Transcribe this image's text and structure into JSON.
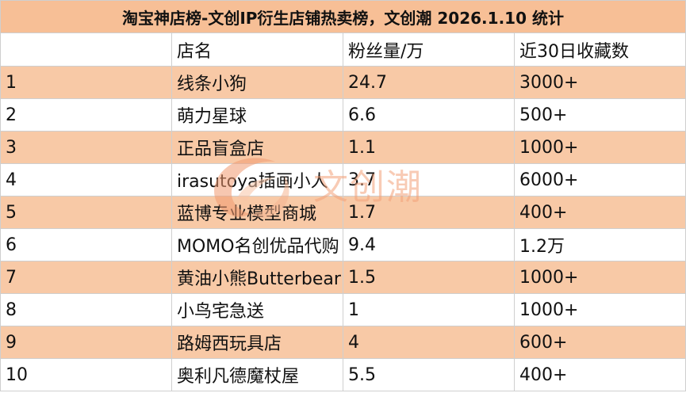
{
  "title": "淘宝神店榜-文创IP衍生店铺热卖榜，文创潮 2026.1.10 统计",
  "headers": {
    "rank": "",
    "name": "店名",
    "fans": "粉丝量/万",
    "favorites": "近30日收藏数"
  },
  "rows": [
    {
      "rank": "1",
      "name": "线条小狗",
      "fans": "24.7",
      "favorites": "3000+"
    },
    {
      "rank": "2",
      "name": "萌力星球",
      "fans": "6.6",
      "favorites": "500+"
    },
    {
      "rank": "3",
      "name": "正品盲盒店",
      "fans": "1.1",
      "favorites": "1000+"
    },
    {
      "rank": "4",
      "name": "irasutoya插画小人",
      "fans": "3.7",
      "favorites": "6000+"
    },
    {
      "rank": "5",
      "name": "蓝博专业模型商城",
      "fans": "1.7",
      "favorites": "400+"
    },
    {
      "rank": "6",
      "name": "MOMO名创优品代购",
      "fans": "9.4",
      "favorites": "1.2万"
    },
    {
      "rank": "7",
      "name": "黄油小熊Butterbear",
      "fans": "1.5",
      "favorites": "1000+"
    },
    {
      "rank": "8",
      "name": "小鸟宅急送",
      "fans": "1",
      "favorites": "1000+"
    },
    {
      "rank": "9",
      "name": "路姆西玩具店",
      "fans": "4",
      "favorites": "600+"
    },
    {
      "rank": "10",
      "name": "奥利凡德魔杖屋",
      "fans": "5.5",
      "favorites": "400+"
    }
  ],
  "watermark": {
    "text": "文创潮",
    "icon": "swoosh-logo-icon"
  },
  "colors": {
    "band": "#f8c9a6",
    "title_bg": "#f7bf96",
    "watermark": "#f3a27a"
  }
}
